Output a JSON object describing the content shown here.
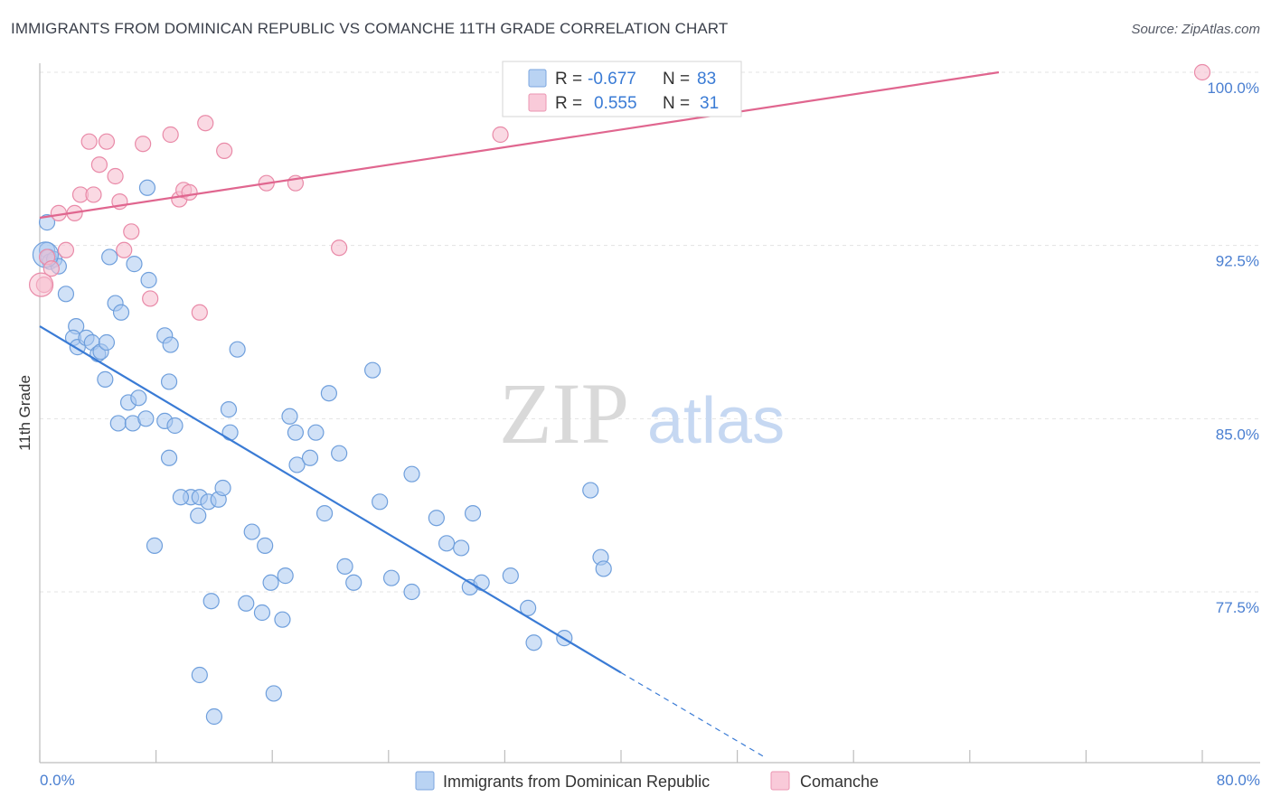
{
  "title": "IMMIGRANTS FROM DOMINICAN REPUBLIC VS COMANCHE 11TH GRADE CORRELATION CHART",
  "source": "Source: ZipAtlas.com",
  "watermark": {
    "zip": "ZIP",
    "atlas": "atlas"
  },
  "colors": {
    "blue_fill": "#a9c8f0",
    "blue_stroke": "#6f9fdc",
    "blue_line": "#3a7bd5",
    "pink_fill": "#f7bfd0",
    "pink_stroke": "#e98aa8",
    "pink_line": "#e0668f",
    "axis_text": "#4a7fd1",
    "grid": "#e3e3e3"
  },
  "legend": {
    "rows": [
      {
        "r_label": "R =",
        "r_value": "-0.677",
        "n_label": "N =",
        "n_value": "83"
      },
      {
        "r_label": "R =",
        "r_value": "0.555",
        "n_label": "N =",
        "n_value": "31"
      }
    ]
  },
  "chart_data": {
    "type": "scatter",
    "title": "IMMIGRANTS FROM DOMINICAN REPUBLIC VS COMANCHE 11TH GRADE CORRELATION CHART",
    "xlabel": "",
    "ylabel": "11th Grade",
    "xlim": [
      0,
      80
    ],
    "ylim": [
      70.5,
      101.5
    ],
    "x_tick_labels": [
      "0.0%",
      "80.0%"
    ],
    "y_ticks": [
      77.5,
      85.0,
      92.5,
      100.0
    ],
    "y_tick_labels": [
      "77.5%",
      "85.0%",
      "92.5%",
      "100.0%"
    ],
    "grid": true,
    "legend_placement": "bottom",
    "series": [
      {
        "name": "Immigrants from Dominican Republic",
        "color": "#a9c8f0",
        "trend": {
          "x0": 0,
          "y0": 89.0,
          "x1": 40,
          "y1": 74.0,
          "dash_x1": 50,
          "dash_y1": 70.3
        },
        "points": [
          [
            0.5,
            93.5
          ],
          [
            0.5,
            92.3
          ],
          [
            0.6,
            92.0
          ],
          [
            0.7,
            91.8
          ],
          [
            1.0,
            91.9
          ],
          [
            1.3,
            91.6
          ],
          [
            1.8,
            90.4
          ],
          [
            2.5,
            89.0
          ],
          [
            2.3,
            88.5
          ],
          [
            2.6,
            88.1
          ],
          [
            3.2,
            88.5
          ],
          [
            3.6,
            88.3
          ],
          [
            4.0,
            87.8
          ],
          [
            4.2,
            87.9
          ],
          [
            4.6,
            88.3
          ],
          [
            4.5,
            86.7
          ],
          [
            4.8,
            92.0
          ],
          [
            5.2,
            90.0
          ],
          [
            5.6,
            89.6
          ],
          [
            6.5,
            91.7
          ],
          [
            7.4,
            95.0
          ],
          [
            7.5,
            91.0
          ],
          [
            8.6,
            88.6
          ],
          [
            9.0,
            88.2
          ],
          [
            8.9,
            86.6
          ],
          [
            5.4,
            84.8
          ],
          [
            6.1,
            85.7
          ],
          [
            6.8,
            85.9
          ],
          [
            6.4,
            84.8
          ],
          [
            7.3,
            85.0
          ],
          [
            8.6,
            84.9
          ],
          [
            9.3,
            84.7
          ],
          [
            8.9,
            83.3
          ],
          [
            10.4,
            81.6
          ],
          [
            11.0,
            81.6
          ],
          [
            11.6,
            81.4
          ],
          [
            12.3,
            81.5
          ],
          [
            12.6,
            82.0
          ],
          [
            10.9,
            80.8
          ],
          [
            13.0,
            85.4
          ],
          [
            13.6,
            88.0
          ],
          [
            13.1,
            84.4
          ],
          [
            14.6,
            80.1
          ],
          [
            15.5,
            79.5
          ],
          [
            15.9,
            77.9
          ],
          [
            16.9,
            78.2
          ],
          [
            17.2,
            85.1
          ],
          [
            17.7,
            83.0
          ],
          [
            18.6,
            83.3
          ],
          [
            19.6,
            80.9
          ],
          [
            20.6,
            83.5
          ],
          [
            21.0,
            78.6
          ],
          [
            21.6,
            77.9
          ],
          [
            22.9,
            87.1
          ],
          [
            23.4,
            81.4
          ],
          [
            24.2,
            78.1
          ],
          [
            25.6,
            77.5
          ],
          [
            25.6,
            82.6
          ],
          [
            27.3,
            80.7
          ],
          [
            28.0,
            79.6
          ],
          [
            29.0,
            79.4
          ],
          [
            29.8,
            80.9
          ],
          [
            29.6,
            77.7
          ],
          [
            30.4,
            77.9
          ],
          [
            32.4,
            78.2
          ],
          [
            33.6,
            76.8
          ],
          [
            34.0,
            75.3
          ],
          [
            36.1,
            75.5
          ],
          [
            37.9,
            81.9
          ],
          [
            38.6,
            79.0
          ],
          [
            38.8,
            78.5
          ],
          [
            11.8,
            77.1
          ],
          [
            14.2,
            77.0
          ],
          [
            15.3,
            76.6
          ],
          [
            16.7,
            76.3
          ],
          [
            7.9,
            79.5
          ],
          [
            9.7,
            81.6
          ],
          [
            11.0,
            73.9
          ],
          [
            12.0,
            72.1
          ],
          [
            16.1,
            73.1
          ],
          [
            17.6,
            84.4
          ],
          [
            19.0,
            84.4
          ],
          [
            19.9,
            86.1
          ]
        ]
      },
      {
        "name": "Comanche",
        "color": "#f7bfd0",
        "trend": {
          "x0": 0,
          "y0": 93.7,
          "x1": 66,
          "y1": 100.0
        },
        "points": [
          [
            0.3,
            90.8
          ],
          [
            0.5,
            92.0
          ],
          [
            0.8,
            91.5
          ],
          [
            1.3,
            93.9
          ],
          [
            1.8,
            92.3
          ],
          [
            2.4,
            93.9
          ],
          [
            2.8,
            94.7
          ],
          [
            3.4,
            97.0
          ],
          [
            3.7,
            94.7
          ],
          [
            4.1,
            96.0
          ],
          [
            4.6,
            97.0
          ],
          [
            5.2,
            95.5
          ],
          [
            5.5,
            94.4
          ],
          [
            5.8,
            92.3
          ],
          [
            6.3,
            93.1
          ],
          [
            7.1,
            96.9
          ],
          [
            7.6,
            90.2
          ],
          [
            9.0,
            97.3
          ],
          [
            9.6,
            94.5
          ],
          [
            9.9,
            94.9
          ],
          [
            10.3,
            94.8
          ],
          [
            11.0,
            89.6
          ],
          [
            11.4,
            97.8
          ],
          [
            12.7,
            96.6
          ],
          [
            15.6,
            95.2
          ],
          [
            17.6,
            95.2
          ],
          [
            20.6,
            92.4
          ],
          [
            31.7,
            97.3
          ],
          [
            33.6,
            100.0
          ],
          [
            40.4,
            98.7
          ],
          [
            80.0,
            100.0
          ]
        ]
      }
    ]
  }
}
